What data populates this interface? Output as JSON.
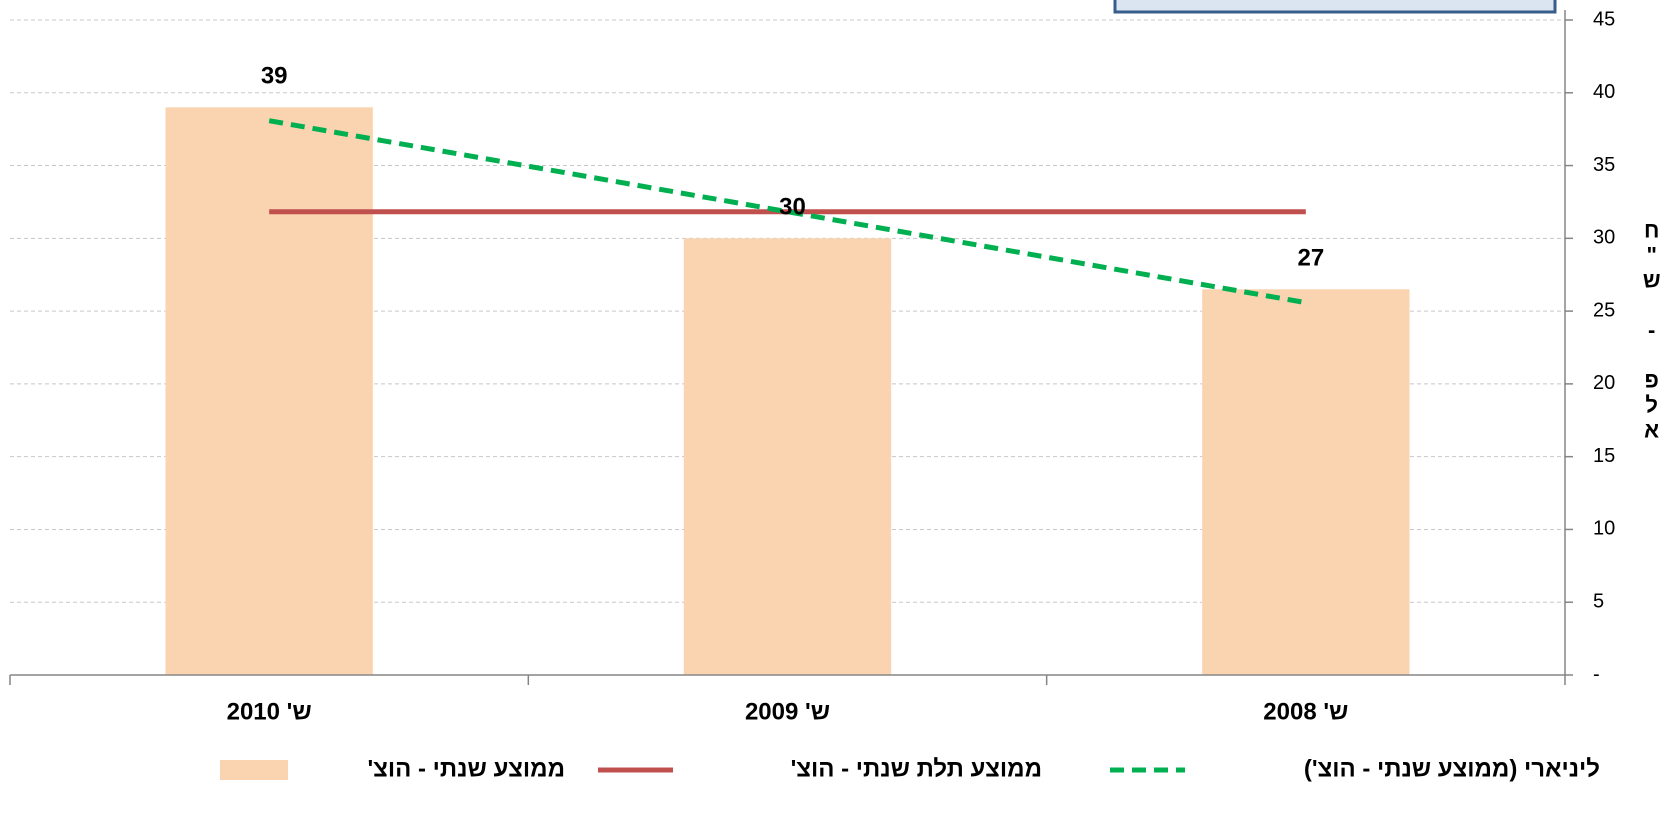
{
  "chart_data": {
    "type": "bar",
    "categories": [
      "ש' 2010",
      "ש' 2009",
      "ש' 2008"
    ],
    "series": [
      {
        "name": "ממוצע שנתי - הוצ'",
        "type": "bar",
        "color": "#fad4b0",
        "values": [
          39,
          30,
          26.5
        ],
        "value_labels": [
          "39",
          "30",
          "27"
        ]
      },
      {
        "name": "ממוצע תלת שנתי - הוצ'",
        "type": "line",
        "color": "#c0504d",
        "values": [
          31.83,
          31.83,
          31.83
        ]
      },
      {
        "name": "ליניארי (ממוצע שנתי - הוצ')",
        "type": "line",
        "color": "#00b050",
        "dashed": true,
        "values": [
          38.08,
          31.83,
          25.58
        ]
      }
    ],
    "y_axis_label": "אלפ - ש\"ח",
    "ylim": [
      0,
      45
    ],
    "yticks": [
      {
        "value": 0,
        "label": "-"
      },
      5,
      10,
      15,
      20,
      25,
      30,
      35,
      40,
      45
    ],
    "grid": true
  }
}
